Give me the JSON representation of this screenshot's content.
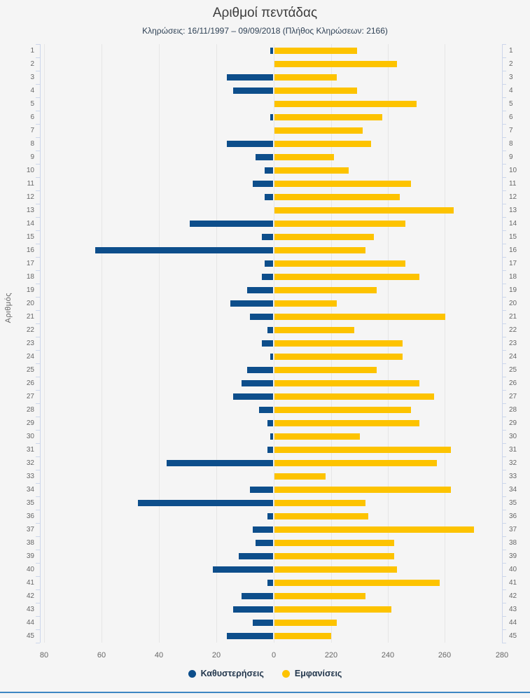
{
  "header": {
    "title": "Αριθμοί πεντάδας",
    "subtitle": "Κληρώσεις: 16/11/1997 – 09/09/2018 (Πλήθος Κληρώσεων: 2166)"
  },
  "colors": {
    "delay_blue": "#0d4e8b",
    "appearance_yellow": "#fdc300",
    "gridline": "#e6e6e6",
    "axis_line": "#ccd6eb",
    "label_gray": "#666666",
    "footer_blue": "#3d87c3",
    "background": "#f5f5f5"
  },
  "chart_data": {
    "type": "bar",
    "orientation": "horizontal-diverging",
    "title": "Αριθμοί πεντάδας",
    "subtitle": "Κληρώσεις: 16/11/1997 – 09/09/2018 (Πλήθος Κληρώσεων: 2166)",
    "draws_total_shown_in_subtitle": 2166,
    "ylabel": "Αριθμός",
    "xlabel": "",
    "grid": true,
    "legend_position": "bottom",
    "categories": [
      1,
      2,
      3,
      4,
      5,
      6,
      7,
      8,
      9,
      10,
      11,
      12,
      13,
      14,
      15,
      16,
      17,
      18,
      19,
      20,
      21,
      22,
      23,
      24,
      25,
      26,
      27,
      28,
      29,
      30,
      31,
      32,
      33,
      34,
      35,
      36,
      37,
      38,
      39,
      40,
      41,
      42,
      43,
      44,
      45
    ],
    "series": [
      {
        "name": "Καθυστερήσεις",
        "color": "#0d4e8b",
        "direction": "left",
        "values": [
          1,
          0,
          16,
          14,
          0,
          1,
          0,
          16,
          6,
          3,
          7,
          3,
          0,
          29,
          4,
          62,
          3,
          4,
          9,
          15,
          8,
          2,
          4,
          1,
          9,
          11,
          14,
          5,
          2,
          1,
          2,
          37,
          0,
          8,
          47,
          2,
          7,
          6,
          12,
          21,
          2,
          11,
          14,
          7,
          16
        ]
      },
      {
        "name": "Εμφανίσεις",
        "color": "#fdc300",
        "direction": "right",
        "values": [
          229,
          243,
          222,
          229,
          250,
          238,
          231,
          234,
          221,
          226,
          248,
          244,
          263,
          246,
          235,
          232,
          246,
          251,
          236,
          222,
          260,
          228,
          245,
          245,
          236,
          251,
          256,
          248,
          251,
          230,
          262,
          257,
          218,
          262,
          232,
          233,
          270,
          242,
          242,
          243,
          258,
          232,
          241,
          222,
          220
        ]
      }
    ],
    "left_axis": {
      "ticks": [
        80,
        60,
        40,
        20,
        0
      ],
      "min": 0,
      "max": 80,
      "reversed": true
    },
    "right_axis": {
      "ticks": [
        220,
        240,
        260,
        280
      ],
      "min": 200,
      "max": 280
    }
  },
  "legend": {
    "items": [
      {
        "label": "Καθυστερήσεις",
        "color": "#0d4e8b"
      },
      {
        "label": "Εμφανίσεις",
        "color": "#fdc300"
      }
    ]
  }
}
